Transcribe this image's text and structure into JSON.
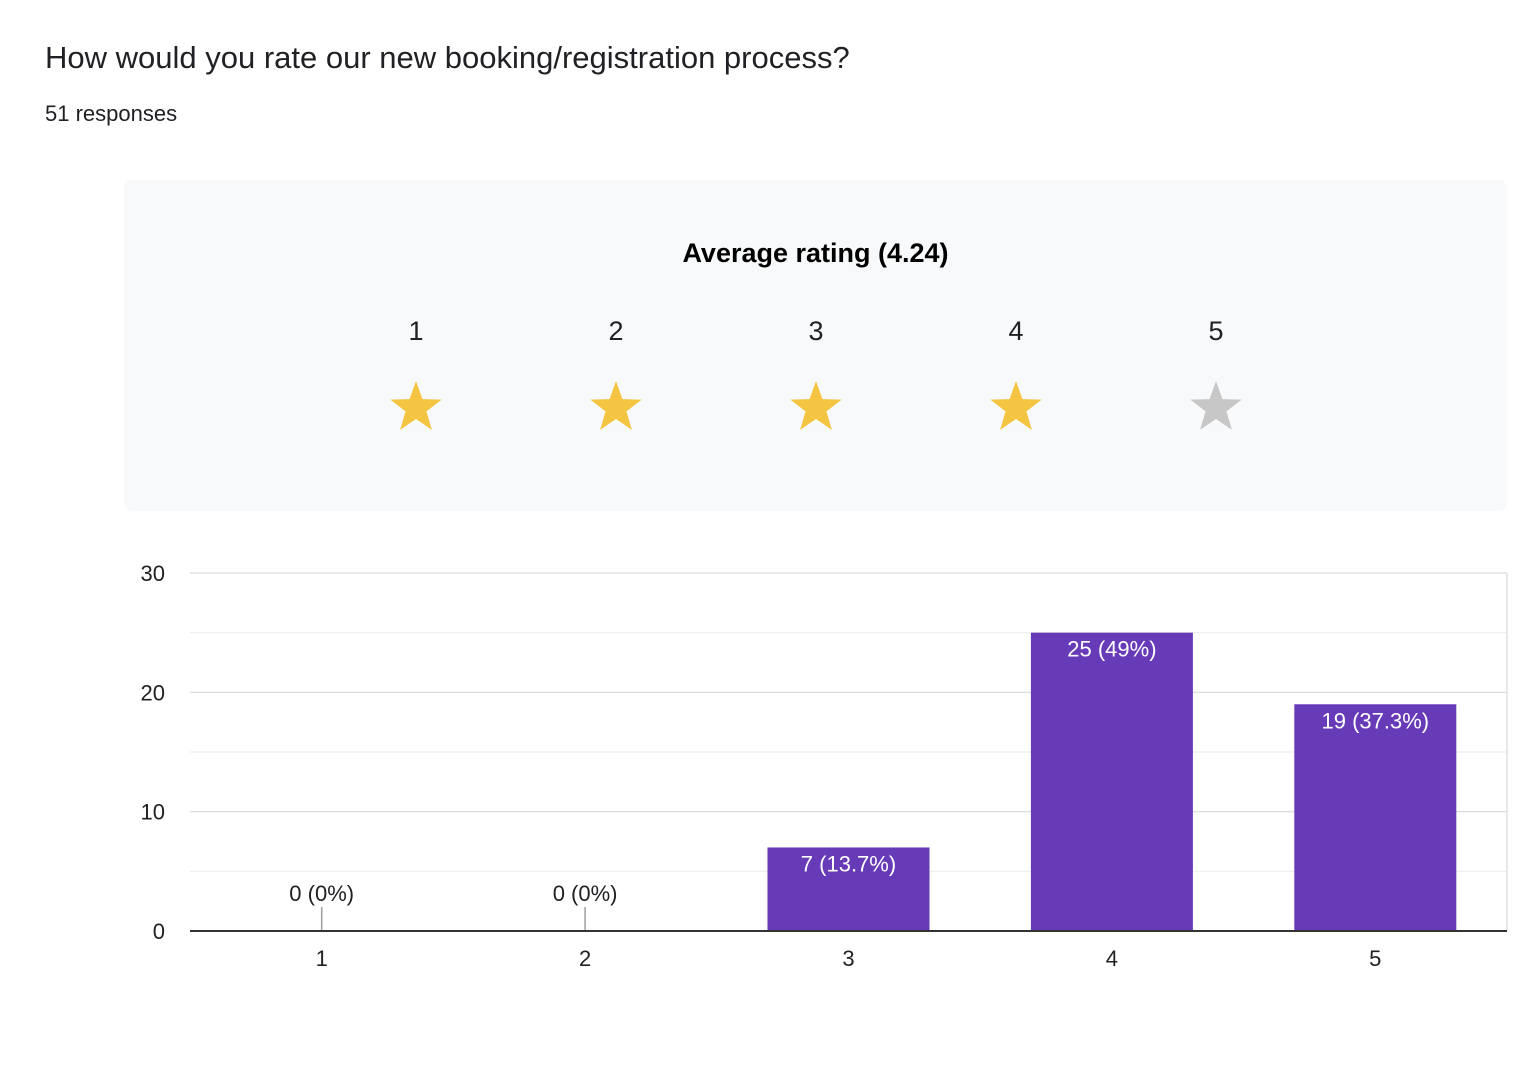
{
  "header": {
    "question": "How would you rate our new booking/registration process?",
    "responses": "51 responses"
  },
  "rating": {
    "title": "Average rating (4.24)",
    "average": 4.24,
    "stars": [
      {
        "label": "1",
        "filled": true
      },
      {
        "label": "2",
        "filled": true
      },
      {
        "label": "3",
        "filled": true
      },
      {
        "label": "4",
        "filled": true
      },
      {
        "label": "5",
        "filled": false
      }
    ],
    "filled_color": "#f4c542",
    "empty_color": "#c7c7c7"
  },
  "chart_data": {
    "type": "bar",
    "categories": [
      "1",
      "2",
      "3",
      "4",
      "5"
    ],
    "values": [
      0,
      0,
      7,
      25,
      19
    ],
    "data_labels": [
      "0 (0%)",
      "0 (0%)",
      "7 (13.7%)",
      "25 (49%)",
      "19 (37.3%)"
    ],
    "ylim": [
      0,
      30
    ],
    "yticks": [
      "0",
      "10",
      "20",
      "30"
    ],
    "title": "",
    "xlabel": "",
    "ylabel": "",
    "bar_color": "#673ab7",
    "grid": true
  }
}
